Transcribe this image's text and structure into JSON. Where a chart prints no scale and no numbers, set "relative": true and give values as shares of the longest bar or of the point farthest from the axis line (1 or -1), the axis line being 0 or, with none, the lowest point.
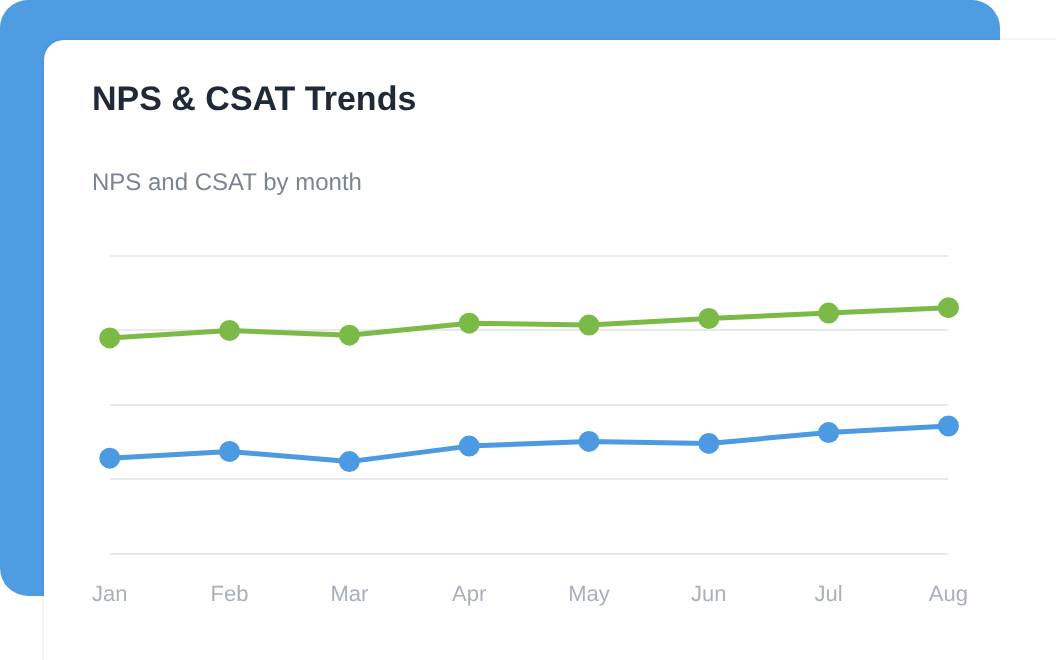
{
  "chart_data": {
    "type": "line",
    "title": "NPS & CSAT Trends",
    "subtitle": "NPS and CSAT by month",
    "categories": [
      "Jan",
      "Feb",
      "Mar",
      "Apr",
      "May",
      "Jun",
      "Jul",
      "Aug"
    ],
    "relative": true,
    "grid": "y",
    "legend": false,
    "marker": "circle",
    "line_style": "solid",
    "series": [
      {
        "color": "#7cba47",
        "values": [
          0.877,
          0.907,
          0.888,
          0.937,
          0.929,
          0.956,
          0.978,
          1
        ]
      },
      {
        "color": "#4b9ae2",
        "values": [
          0.388,
          0.415,
          0.374,
          0.437,
          0.456,
          0.448,
          0.492,
          0.519
        ]
      }
    ]
  }
}
